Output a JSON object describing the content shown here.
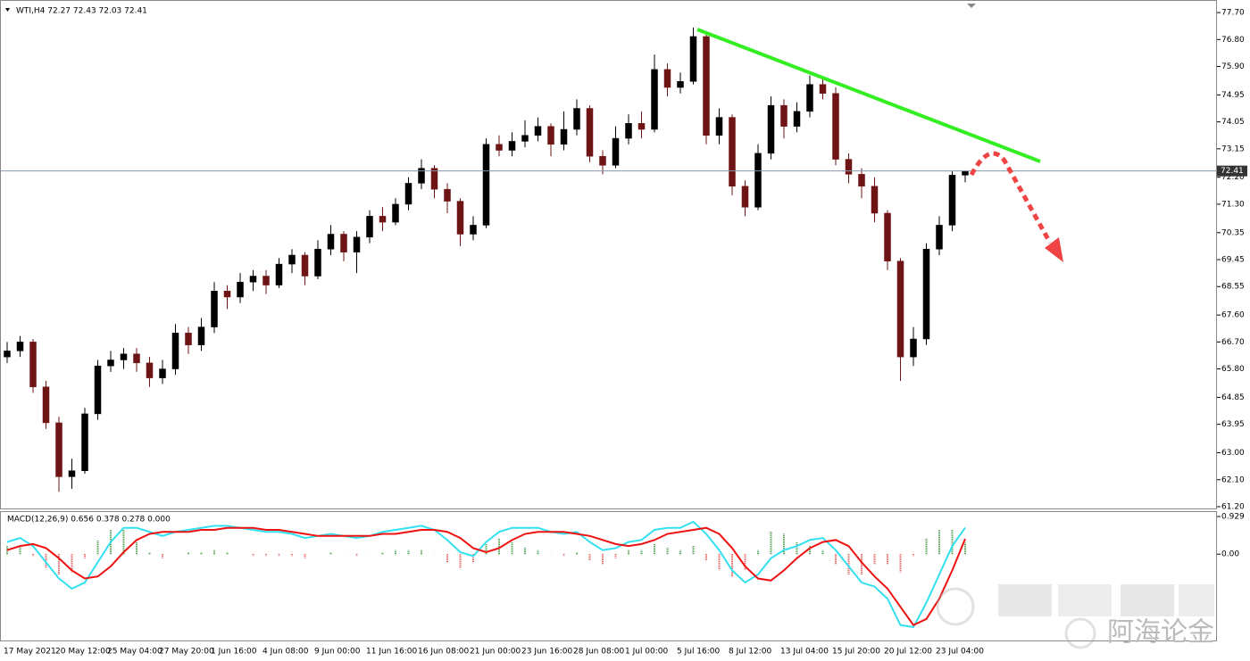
{
  "chart_data": [
    {
      "type": "candlestick",
      "title": "WTI,H4  72.27 72.43 72.03 72.41",
      "categories": [
        "17 May 2021",
        null,
        null,
        null,
        "20 May 12:00",
        null,
        null,
        null,
        "25 May 04:00",
        null,
        null,
        null,
        "27 May 20:00",
        null,
        null,
        null,
        "1 Jun 16:00",
        null,
        null,
        null,
        "4 Jun 08:00",
        null,
        null,
        null,
        "9 Jun 00:00",
        null,
        null,
        null,
        "11 Jun 16:00",
        null,
        null,
        null,
        "16 Jun 08:00",
        null,
        null,
        null,
        "21 Jun 00:00",
        null,
        null,
        null,
        "23 Jun 16:00",
        null,
        null,
        null,
        "28 Jun 08:00",
        null,
        null,
        null,
        "1 Jul 00:00",
        null,
        null,
        null,
        "5 Jul 16:00",
        null,
        null,
        null,
        "8 Jul 12:00",
        null,
        null,
        null,
        "13 Jul 04:00",
        null,
        null,
        null,
        "15 Jul 20:00",
        null,
        null,
        null,
        "20 Jul 12:00",
        null,
        null,
        null,
        "23 Jul 04:00",
        null,
        null
      ],
      "open": [
        66.2,
        66.4,
        66.7,
        65.2,
        64.0,
        62.2,
        62.4,
        64.3,
        65.9,
        66.1,
        66.3,
        66.0,
        65.5,
        65.8,
        67.0,
        66.6,
        67.2,
        68.4,
        68.2,
        68.7,
        68.9,
        68.6,
        69.3,
        69.6,
        68.9,
        69.8,
        70.3,
        69.7,
        70.2,
        70.9,
        70.7,
        71.3,
        72.0,
        72.5,
        71.8,
        71.4,
        70.3,
        70.6,
        73.3,
        73.1,
        73.4,
        73.6,
        73.9,
        73.3,
        73.8,
        74.5,
        72.9,
        72.6,
        73.5,
        74.0,
        73.8,
        75.8,
        75.2,
        75.4,
        76.9,
        73.6,
        74.2,
        71.9,
        71.2,
        73.0,
        74.6,
        73.9,
        74.4,
        75.3,
        75.0,
        72.8,
        72.3,
        71.9,
        71.0,
        69.4,
        66.2,
        66.8,
        69.8,
        70.6,
        72.27
      ],
      "high": [
        66.7,
        66.9,
        66.8,
        65.4,
        64.2,
        62.8,
        64.5,
        66.1,
        66.4,
        66.5,
        66.5,
        66.2,
        66.1,
        67.3,
        67.2,
        67.5,
        68.7,
        68.6,
        69.0,
        69.1,
        69.1,
        69.5,
        69.8,
        69.7,
        70.1,
        70.6,
        70.4,
        70.4,
        71.1,
        71.2,
        71.5,
        72.2,
        72.8,
        72.6,
        72.0,
        71.5,
        70.9,
        73.5,
        73.6,
        73.7,
        74.1,
        74.2,
        74.0,
        74.4,
        74.8,
        74.6,
        73.1,
        73.9,
        74.3,
        74.4,
        76.3,
        76.0,
        75.7,
        77.2,
        77.0,
        74.5,
        74.3,
        72.1,
        73.3,
        74.9,
        74.8,
        74.7,
        75.6,
        75.5,
        75.2,
        73.0,
        72.5,
        72.2,
        71.1,
        69.5,
        67.2,
        70.0,
        70.9,
        72.4,
        72.43
      ],
      "low": [
        66.0,
        66.2,
        65.0,
        63.8,
        61.7,
        61.8,
        62.3,
        64.1,
        65.7,
        65.8,
        65.7,
        65.2,
        65.3,
        65.6,
        66.3,
        66.4,
        67.0,
        67.8,
        68.0,
        68.4,
        68.3,
        68.5,
        69.0,
        68.6,
        68.8,
        69.6,
        69.4,
        69.0,
        70.0,
        70.4,
        70.6,
        71.1,
        71.8,
        71.5,
        71.0,
        69.9,
        70.1,
        70.5,
        72.9,
        72.9,
        73.2,
        73.4,
        72.9,
        73.1,
        73.6,
        72.7,
        72.3,
        72.5,
        73.3,
        73.5,
        73.7,
        74.9,
        75.0,
        75.3,
        73.3,
        73.3,
        71.6,
        70.9,
        71.1,
        72.8,
        73.5,
        73.7,
        74.2,
        74.8,
        72.6,
        72.0,
        71.5,
        70.7,
        69.1,
        65.4,
        65.9,
        66.6,
        69.6,
        70.4,
        72.03
      ],
      "close": [
        66.4,
        66.7,
        65.2,
        64.0,
        62.2,
        62.4,
        64.3,
        65.9,
        66.1,
        66.3,
        66.0,
        65.5,
        65.8,
        67.0,
        66.6,
        67.2,
        68.4,
        68.2,
        68.7,
        68.9,
        68.6,
        69.3,
        69.6,
        68.9,
        69.8,
        70.3,
        69.7,
        70.2,
        70.9,
        70.7,
        71.3,
        72.0,
        72.5,
        71.8,
        71.4,
        70.3,
        70.6,
        73.3,
        73.1,
        73.4,
        73.6,
        73.9,
        73.3,
        73.8,
        74.5,
        72.9,
        72.6,
        73.5,
        74.0,
        73.8,
        75.8,
        75.2,
        75.4,
        76.9,
        73.6,
        74.2,
        71.9,
        71.2,
        73.0,
        74.6,
        73.9,
        74.4,
        75.3,
        75.0,
        72.8,
        72.3,
        71.9,
        71.0,
        69.4,
        66.2,
        66.8,
        69.8,
        70.6,
        72.27,
        72.41
      ],
      "up_color": "#000000",
      "down_color": "#6e1414",
      "last_price": 72.41,
      "last_price_color": "#8496ad",
      "ylim": [
        61.14,
        78.06
      ],
      "yticks": [
        {
          "value": 77.7,
          "label": "77.70"
        },
        {
          "value": 76.8,
          "label": "76.80"
        },
        {
          "value": 75.9,
          "label": "75.90"
        },
        {
          "value": 74.95,
          "label": "74.95"
        },
        {
          "value": 74.05,
          "label": "74.05"
        },
        {
          "value": 73.15,
          "label": "73.15"
        },
        {
          "value": 72.2,
          "label": "72.20"
        },
        {
          "value": 71.3,
          "label": "71.30"
        },
        {
          "value": 70.35,
          "label": "70.35"
        },
        {
          "value": 69.45,
          "label": "69.45"
        },
        {
          "value": 68.55,
          "label": "68.55"
        },
        {
          "value": 67.6,
          "label": "67.60"
        },
        {
          "value": 66.7,
          "label": "66.70"
        },
        {
          "value": 65.8,
          "label": "65.80"
        },
        {
          "value": 64.85,
          "label": "64.85"
        },
        {
          "value": 63.95,
          "label": "63.95"
        },
        {
          "value": 63.0,
          "label": "63.00"
        },
        {
          "value": 62.1,
          "label": "62.10"
        },
        {
          "value": 61.2,
          "label": "61.20"
        }
      ],
      "grid": false,
      "watermark": "阿海论金"
    },
    {
      "type": "macd",
      "title": "MACD(12,26,9) 0.656 0.378 0.278 0.000",
      "series": [
        {
          "color": "#33e0f0",
          "values": [
            0.3,
            0.4,
            0.2,
            -0.2,
            -0.6,
            -0.85,
            -0.7,
            -0.2,
            0.3,
            0.65,
            0.65,
            0.55,
            0.45,
            0.55,
            0.6,
            0.65,
            0.7,
            0.7,
            0.65,
            0.6,
            0.55,
            0.55,
            0.5,
            0.4,
            0.45,
            0.5,
            0.45,
            0.4,
            0.45,
            0.55,
            0.6,
            0.65,
            0.7,
            0.6,
            0.35,
            0.05,
            -0.05,
            0.3,
            0.55,
            0.65,
            0.65,
            0.65,
            0.55,
            0.5,
            0.55,
            0.3,
            0.1,
            0.15,
            0.3,
            0.35,
            0.6,
            0.65,
            0.65,
            0.8,
            0.5,
            0.1,
            -0.4,
            -0.7,
            -0.5,
            -0.1,
            0.1,
            0.2,
            0.35,
            0.4,
            0.1,
            -0.3,
            -0.7,
            -0.8,
            -1.1,
            -1.75,
            -1.8,
            -1.2,
            -0.5,
            0.2,
            0.656
          ]
        },
        {
          "color": "#ee1111",
          "values": [
            0.1,
            0.2,
            0.25,
            0.15,
            -0.1,
            -0.4,
            -0.6,
            -0.55,
            -0.3,
            0.05,
            0.35,
            0.5,
            0.55,
            0.55,
            0.55,
            0.6,
            0.6,
            0.65,
            0.65,
            0.65,
            0.6,
            0.6,
            0.55,
            0.5,
            0.45,
            0.45,
            0.45,
            0.45,
            0.45,
            0.5,
            0.5,
            0.55,
            0.6,
            0.6,
            0.55,
            0.4,
            0.15,
            0.05,
            0.15,
            0.35,
            0.5,
            0.55,
            0.55,
            0.55,
            0.5,
            0.45,
            0.35,
            0.25,
            0.2,
            0.25,
            0.35,
            0.5,
            0.55,
            0.6,
            0.65,
            0.5,
            0.15,
            -0.3,
            -0.6,
            -0.65,
            -0.4,
            -0.1,
            0.15,
            0.3,
            0.35,
            0.2,
            -0.2,
            -0.55,
            -0.85,
            -1.3,
            -1.75,
            -1.6,
            -1.1,
            -0.4,
            0.378
          ]
        }
      ],
      "histogram": {
        "up_color": "#2e8b2e",
        "down_color": "#e04040",
        "values": [
          0.2,
          0.2,
          -0.05,
          -0.35,
          -0.5,
          -0.45,
          -0.1,
          0.35,
          0.6,
          0.6,
          0.3,
          0.05,
          -0.1,
          0,
          0.05,
          0.05,
          0.1,
          0.05,
          0,
          -0.05,
          -0.05,
          -0.05,
          -0.05,
          -0.1,
          0,
          0.05,
          0,
          -0.05,
          0,
          0.05,
          0.1,
          0.1,
          0.1,
          0,
          -0.2,
          -0.35,
          -0.2,
          0.25,
          0.4,
          0.3,
          0.15,
          0.1,
          0,
          -0.05,
          0.05,
          -0.15,
          -0.25,
          -0.1,
          0.1,
          0.1,
          0.25,
          0.15,
          0.1,
          0.2,
          -0.15,
          -0.4,
          -0.55,
          -0.4,
          0.1,
          0.55,
          0.5,
          0.3,
          0.2,
          0.1,
          -0.25,
          -0.5,
          -0.5,
          -0.25,
          -0.25,
          -0.45,
          -0.05,
          0.4,
          0.6,
          0.6,
          0.278
        ]
      },
      "ylim": [
        -2.13,
        1.04
      ],
      "yticks": [
        0.929,
        {
          "value": 0,
          "label": "0.00"
        }
      ]
    }
  ]
}
